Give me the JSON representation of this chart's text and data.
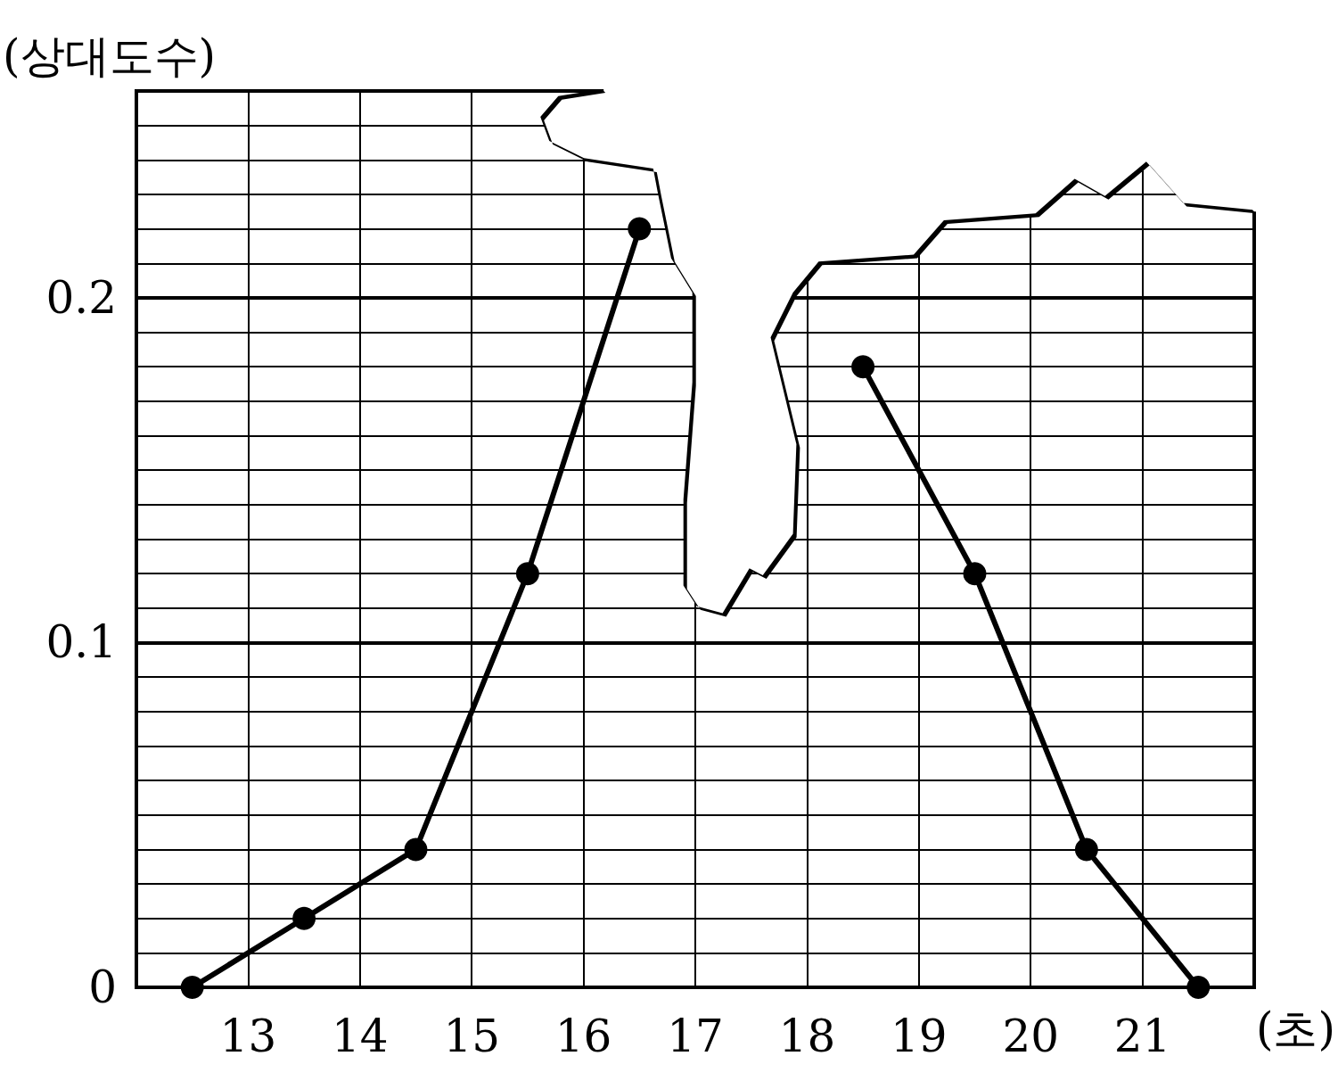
{
  "chart_data": {
    "type": "line",
    "x": [
      12.5,
      13.5,
      14.5,
      15.5,
      16.5,
      17.5,
      18.5,
      19.5,
      20.5,
      21.5
    ],
    "series": [
      {
        "color": "#000000",
        "values": [
          0,
          0.02,
          0.04,
          0.12,
          0.22,
          null,
          0.18,
          0.12,
          0.04,
          0
        ]
      }
    ],
    "xlabel": "(초)",
    "ylabel": "(상대도수)",
    "xlim": [
      12,
      22
    ],
    "ylim": [
      0,
      0.26
    ],
    "xticks": [
      {
        "value": 12,
        "label": null
      },
      13,
      14,
      15,
      16,
      17,
      18,
      19,
      20,
      21,
      {
        "value": 22,
        "label": null
      }
    ],
    "yticks": [
      0,
      0.1,
      0.2
    ],
    "grid": true,
    "marker": "circle",
    "line_style": "solid"
  }
}
